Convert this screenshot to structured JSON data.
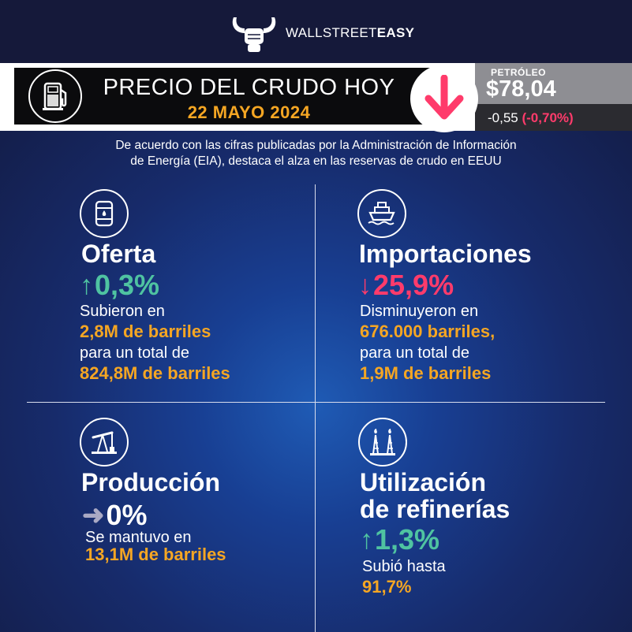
{
  "brand": {
    "name_regular": "WALLSTREET",
    "name_bold": "EASY"
  },
  "header": {
    "title": "PRECIO DEL CRUDO HOY",
    "date": "22 MAYO 2024"
  },
  "price": {
    "label": "PETRÓLEO",
    "value": "$78,04",
    "change_abs": "-0,55",
    "change_pct": "(-0,70%)",
    "direction": "down"
  },
  "intro": {
    "line1": "De acuerdo con las cifras publicadas por la Administración de Información",
    "line2": "de Energía (EIA), destaca el alza en las reservas de crudo en EEUU"
  },
  "quadrants": {
    "oferta": {
      "icon": "oil-barrel-icon",
      "title": "Oferta",
      "arrow": "↑",
      "stat": "0,3%",
      "text1": "Subieron en",
      "highlight1": "2,8M de barriles",
      "text2": "para un total de",
      "highlight2": "824,8M de barriles"
    },
    "importaciones": {
      "icon": "ship-icon",
      "title": "Importaciones",
      "arrow": "↓",
      "stat": "25,9%",
      "text1": "Disminuyeron en",
      "highlight1": "676.000 barriles,",
      "text2": "para un total de",
      "highlight2": "1,9M de barriles"
    },
    "produccion": {
      "icon": "pumpjack-icon",
      "title": "Producción",
      "arrow": "➜",
      "stat": "0%",
      "text1": "Se mantuvo en",
      "highlight1": "13,1M de barriles"
    },
    "refinerias": {
      "icon": "refinery-icon",
      "title_line1": "Utilización",
      "title_line2": "de refinerías",
      "arrow": "↑",
      "stat": "1,3%",
      "text1": "Subió hasta",
      "highlight1": "91,7%"
    }
  },
  "colors": {
    "accent_orange": "#f5a623",
    "up_green": "#4fc3a1",
    "down_pink": "#ff3b6b",
    "background_blue": "#172b6b"
  }
}
